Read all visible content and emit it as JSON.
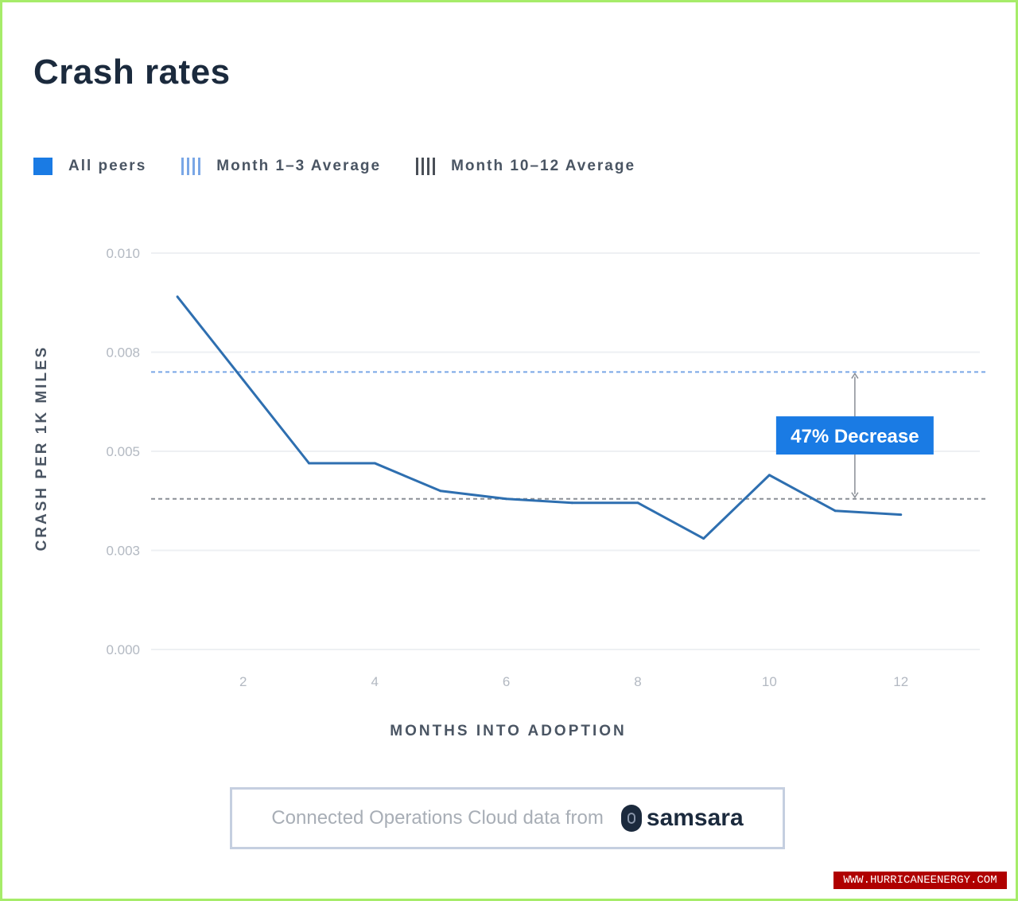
{
  "title": "Crash rates",
  "legend": [
    {
      "label": "All peers",
      "style": "solid",
      "color": "#1a7be4"
    },
    {
      "label": "Month 1–3 Average",
      "style": "striped",
      "color": "#7aa7e6"
    },
    {
      "label": "Month 10–12 Average",
      "style": "striped",
      "color": "#4a4f57"
    }
  ],
  "chart_data": {
    "type": "line",
    "xlabel": "MONTHS INTO ADOPTION",
    "ylabel": "CRASH PER 1K MILES",
    "x_ticks": [
      2,
      4,
      6,
      8,
      10,
      12
    ],
    "y_tick_labels": [
      "0.000",
      "0.003",
      "0.005",
      "0.008",
      "0.010"
    ],
    "xlim": [
      0.6,
      13.2
    ],
    "ylim": [
      0,
      0.01
    ],
    "grid": true,
    "series": [
      {
        "name": "All peers",
        "color": "#2e6fb0",
        "x": [
          1,
          2,
          3,
          4,
          5,
          6,
          7,
          8,
          9,
          10,
          11,
          12
        ],
        "y": [
          0.0089,
          0.0068,
          0.0047,
          0.0047,
          0.004,
          0.0038,
          0.0037,
          0.0037,
          0.0028,
          0.0044,
          0.0035,
          0.0034
        ]
      }
    ],
    "reference_lines": [
      {
        "series": "Month 1–3 Average",
        "y": 0.007,
        "color": "#7aa7e6"
      },
      {
        "series": "Month 10–12 Average",
        "y": 0.0038,
        "color": "#8a8f96"
      }
    ],
    "annotation": {
      "text": "47% Decrease",
      "x": 11.3,
      "color": "#1a7be4"
    }
  },
  "source": {
    "text": "Connected Operations Cloud data from",
    "logo": "samsara"
  },
  "watermark": "WWW.HURRICANEENERGY.COM"
}
